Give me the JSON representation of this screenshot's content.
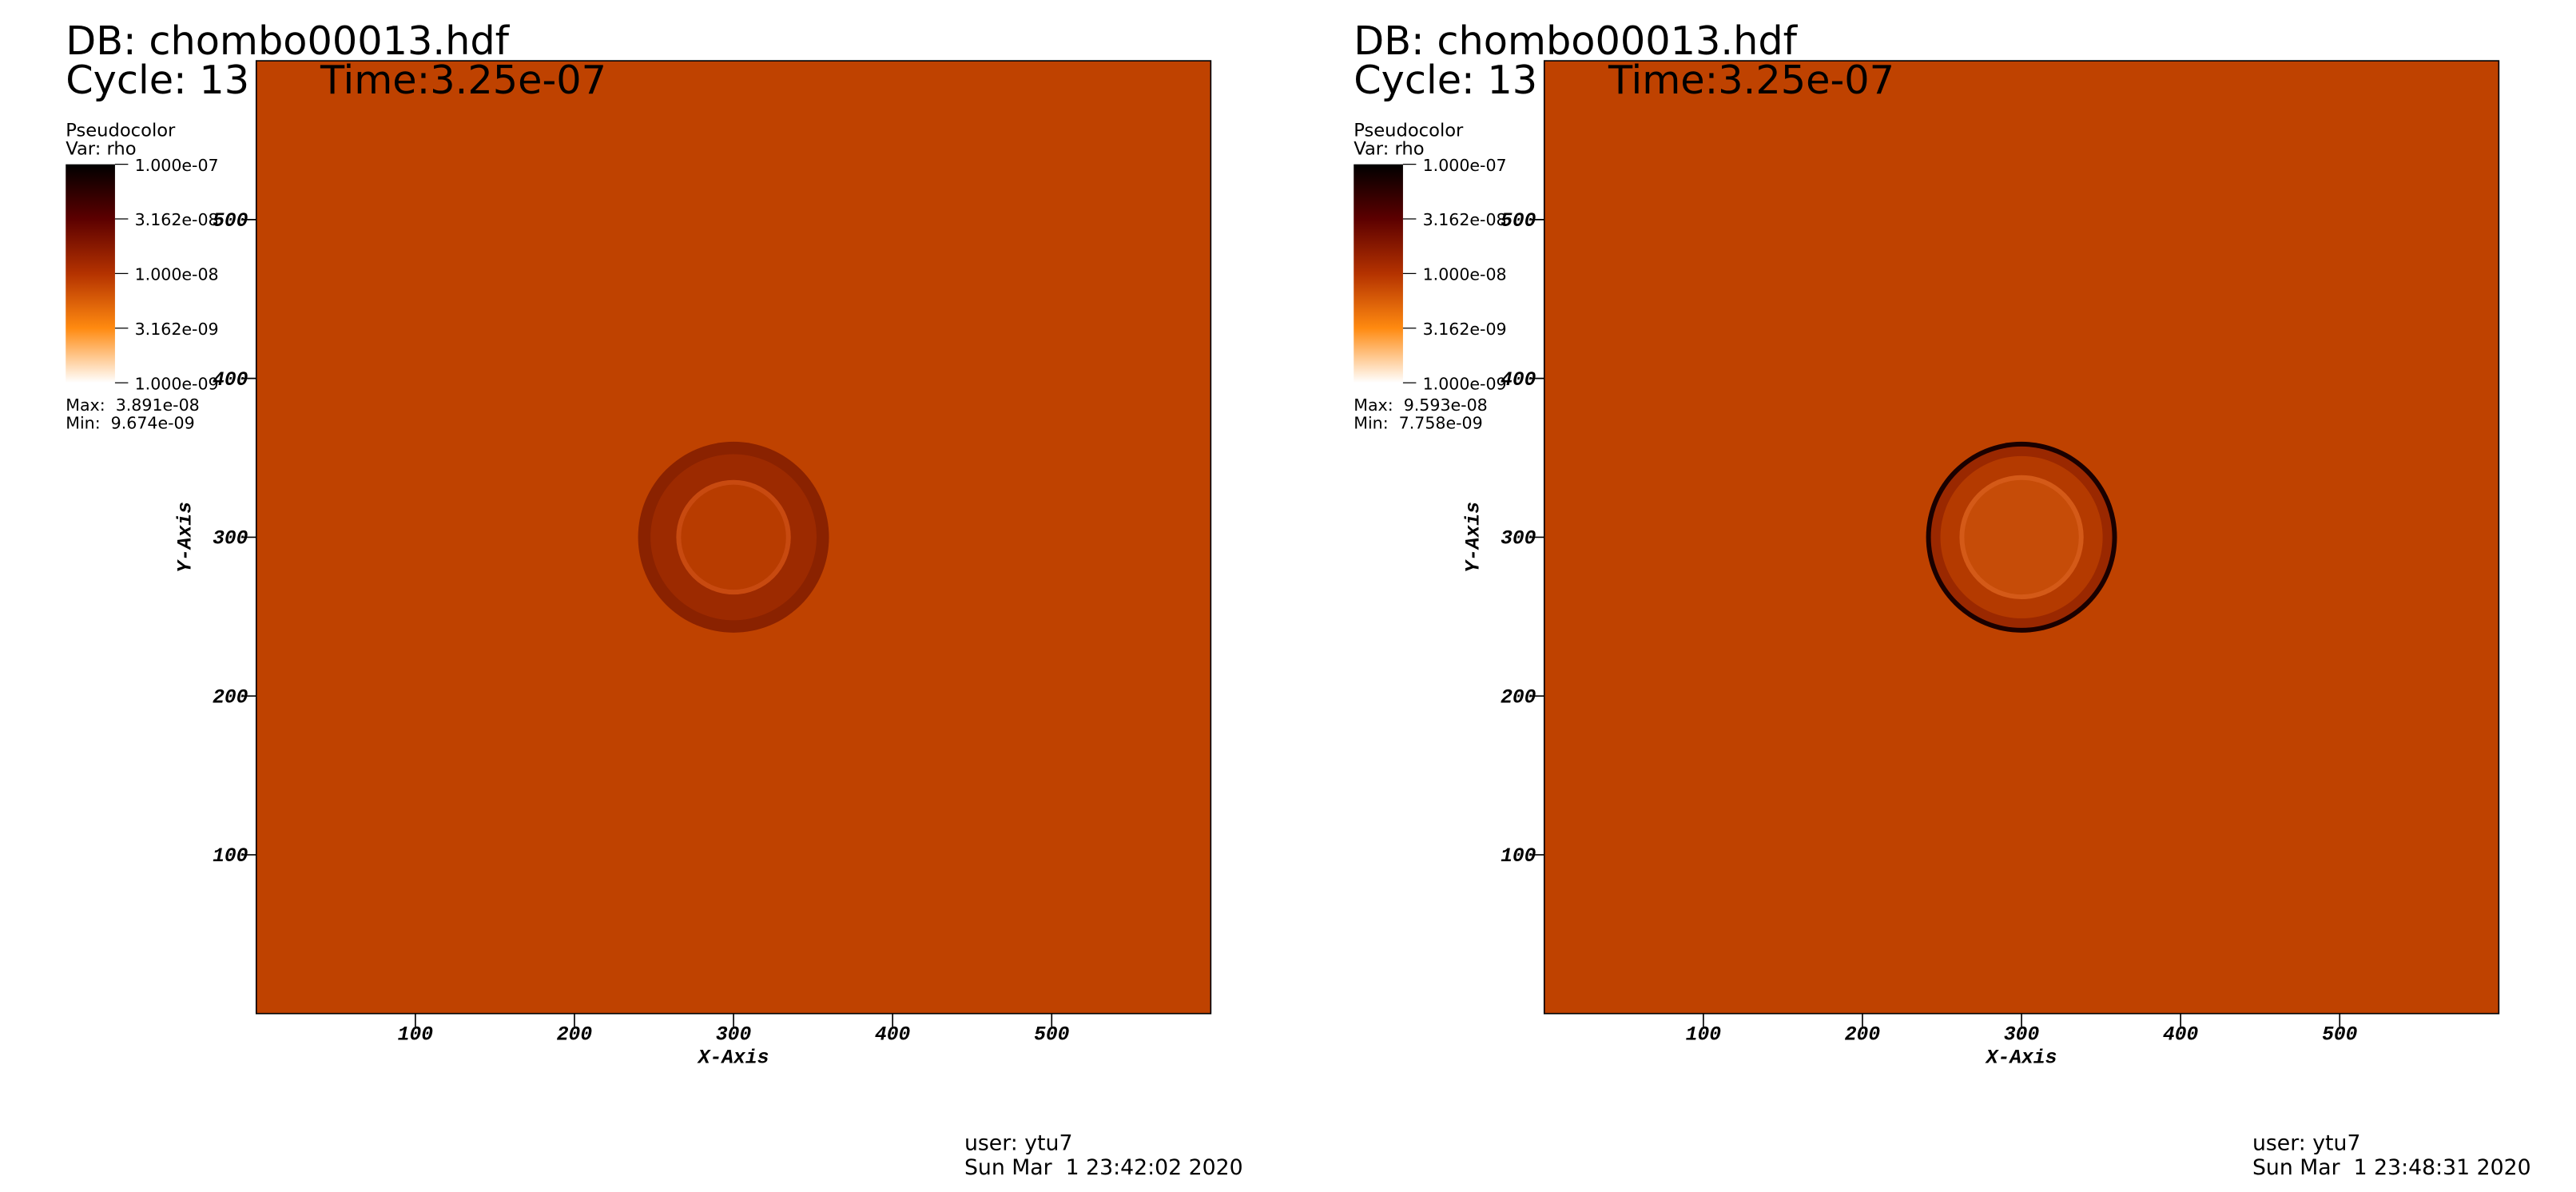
{
  "chart_data": [
    {
      "type": "pseudocolor",
      "db": "DB: chombo00013.hdf",
      "cycle": "Cycle: 13",
      "time": "Time:3.25e-07",
      "legend_title": "Pseudocolor",
      "legend_var": "Var: rho",
      "colorbar_lim": [
        1e-09,
        1e-07
      ],
      "colorbar_log": true,
      "colorbar_ticks": [
        {
          "value": 1e-07,
          "label": "1.000e-07"
        },
        {
          "value": 3.162e-08,
          "label": "3.162e-08"
        },
        {
          "value": 1e-08,
          "label": "1.000e-08"
        },
        {
          "value": 3.162e-09,
          "label": "3.162e-09"
        },
        {
          "value": 1e-09,
          "label": "1.000e-09"
        }
      ],
      "colormap": [
        "#000000",
        "#5c0000",
        "#b43200",
        "#ff8a10",
        "#ffffff"
      ],
      "max": "Max:  3.891e-08",
      "min": "Min:  9.674e-09",
      "xlabel": "X-Axis",
      "ylabel": "Y-Axis",
      "xlim": [
        0,
        600
      ],
      "ylim": [
        0,
        600
      ],
      "xticks": [
        100,
        200,
        300,
        400,
        500
      ],
      "yticks": [
        100,
        200,
        300,
        400,
        500
      ],
      "color": "#bf4200",
      "user": "user: ytu7",
      "date": "Sun Mar  1 23:42:02 2020"
    },
    {
      "type": "pseudocolor",
      "db": "DB: chombo00013.hdf",
      "cycle": "Cycle: 13",
      "time": "Time:3.25e-07",
      "legend_title": "Pseudocolor",
      "legend_var": "Var: rho",
      "colorbar_lim": [
        1e-09,
        1e-07
      ],
      "colorbar_log": true,
      "colorbar_ticks": [
        {
          "value": 1e-07,
          "label": "1.000e-07"
        },
        {
          "value": 3.162e-08,
          "label": "3.162e-08"
        },
        {
          "value": 1e-08,
          "label": "1.000e-08"
        },
        {
          "value": 3.162e-09,
          "label": "3.162e-09"
        },
        {
          "value": 1e-09,
          "label": "1.000e-09"
        }
      ],
      "colormap": [
        "#000000",
        "#5c0000",
        "#b43200",
        "#ff8a10",
        "#ffffff"
      ],
      "max": "Max:  9.593e-08",
      "min": "Min:  7.758e-09",
      "xlabel": "X-Axis",
      "ylabel": "Y-Axis",
      "xlim": [
        0,
        600
      ],
      "ylim": [
        0,
        600
      ],
      "xticks": [
        100,
        200,
        300,
        400,
        500
      ],
      "yticks": [
        100,
        200,
        300,
        400,
        500
      ],
      "color": "#bf4200",
      "user": "user: ytu7",
      "date": "Sun Mar  1 23:48:31 2020"
    }
  ]
}
